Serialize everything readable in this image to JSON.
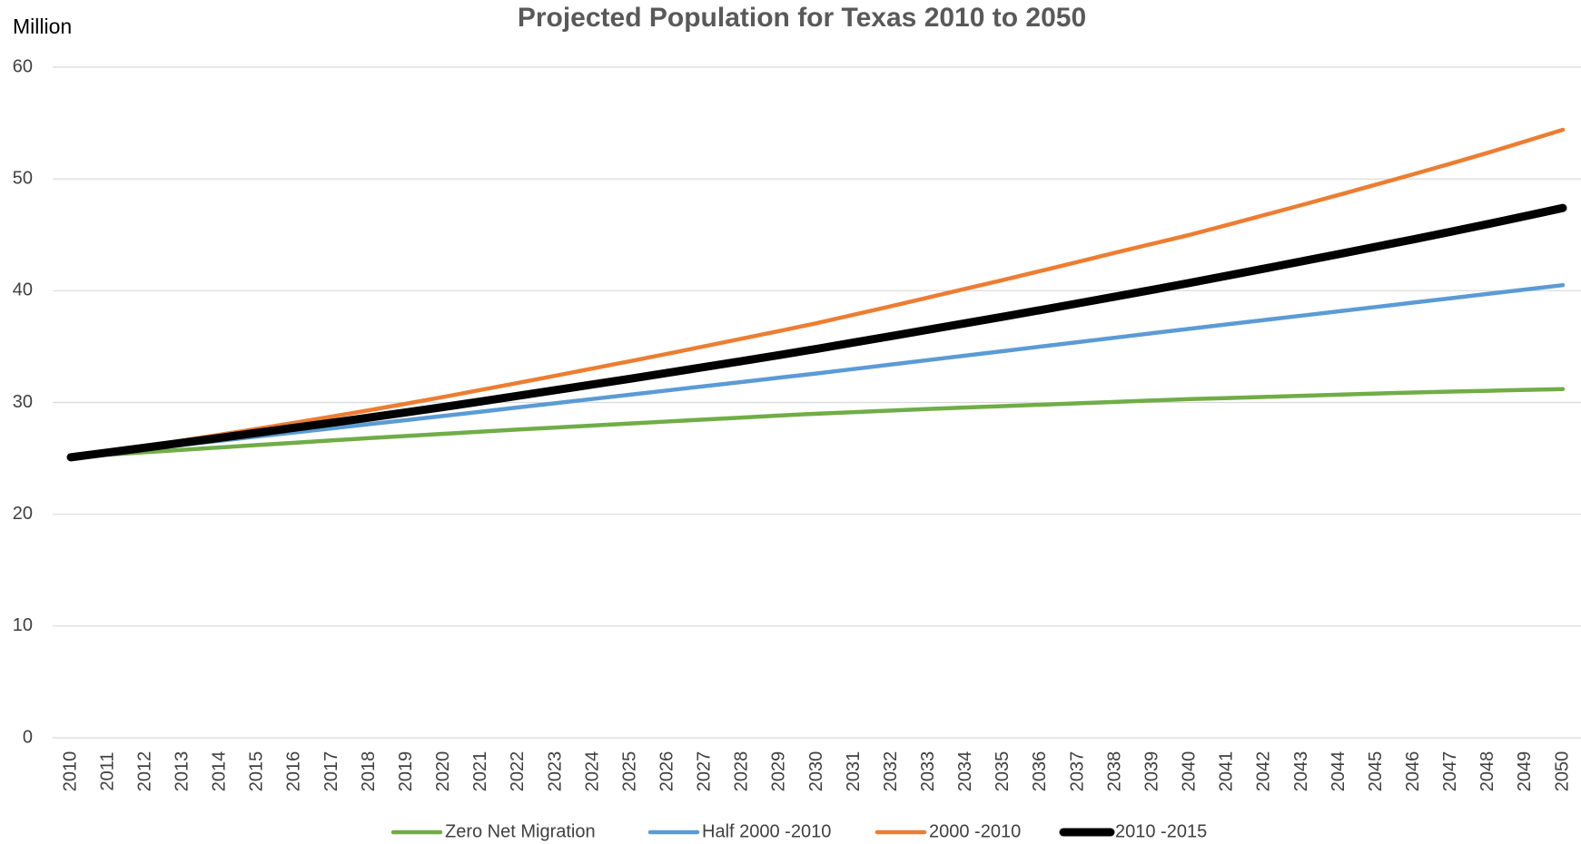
{
  "chart_data": {
    "type": "line",
    "title": "Projected Population for Texas 2010 to 2050",
    "y_label": "Million",
    "x": [
      2010,
      2011,
      2012,
      2013,
      2014,
      2015,
      2016,
      2017,
      2018,
      2019,
      2020,
      2021,
      2022,
      2023,
      2024,
      2025,
      2026,
      2027,
      2028,
      2029,
      2030,
      2031,
      2032,
      2033,
      2034,
      2035,
      2036,
      2037,
      2038,
      2039,
      2040,
      2041,
      2042,
      2043,
      2044,
      2045,
      2046,
      2047,
      2048,
      2049,
      2050
    ],
    "xlim": [
      2010,
      2050
    ],
    "ylim": [
      0,
      60
    ],
    "yticks": [
      0,
      10,
      20,
      30,
      40,
      50,
      60
    ],
    "grid": true,
    "legend": "bottom",
    "series": [
      {
        "name": "Zero Net Migration",
        "color": "#70ad47",
        "width": 4.5,
        "values": [
          25.1,
          25.33,
          25.55,
          25.77,
          25.98,
          26.19,
          26.4,
          26.61,
          26.81,
          27.01,
          27.2,
          27.39,
          27.58,
          27.76,
          27.94,
          28.12,
          28.3,
          28.48,
          28.65,
          28.83,
          29.0,
          29.14,
          29.28,
          29.42,
          29.55,
          29.68,
          29.8,
          29.93,
          30.05,
          30.18,
          30.3,
          30.4,
          30.5,
          30.6,
          30.7,
          30.8,
          30.89,
          30.97,
          31.05,
          31.13,
          31.2
        ]
      },
      {
        "name": "Half 2000 -2010",
        "color": "#5b9bd5",
        "width": 4.5,
        "values": [
          25.1,
          25.47,
          25.84,
          26.21,
          26.58,
          26.95,
          27.32,
          27.69,
          28.06,
          28.43,
          28.8,
          29.18,
          29.56,
          29.94,
          30.32,
          30.7,
          31.08,
          31.46,
          31.84,
          32.22,
          32.6,
          33.0,
          33.4,
          33.8,
          34.2,
          34.6,
          35.0,
          35.4,
          35.8,
          36.2,
          36.6,
          36.99,
          37.38,
          37.77,
          38.16,
          38.55,
          38.94,
          39.33,
          39.72,
          40.11,
          40.5
        ]
      },
      {
        "name": "2000 -2010",
        "color": "#ed7d31",
        "width": 4.5,
        "values": [
          25.1,
          25.59,
          26.09,
          26.6,
          27.12,
          27.65,
          28.19,
          28.74,
          29.31,
          29.9,
          30.5,
          31.13,
          31.76,
          32.4,
          33.05,
          33.7,
          34.36,
          35.04,
          35.72,
          36.4,
          37.1,
          37.86,
          38.62,
          39.4,
          40.18,
          40.97,
          41.77,
          42.58,
          43.4,
          44.2,
          45.0,
          45.88,
          46.77,
          47.67,
          48.58,
          49.5,
          50.43,
          51.38,
          52.35,
          53.37,
          54.4
        ]
      },
      {
        "name": "2010 -2015",
        "color": "#000000",
        "width": 9,
        "values": [
          25.1,
          25.53,
          25.96,
          26.4,
          26.84,
          27.29,
          27.74,
          28.19,
          28.65,
          29.12,
          29.6,
          30.1,
          30.6,
          31.11,
          31.62,
          32.13,
          32.65,
          33.18,
          33.71,
          34.25,
          34.8,
          35.37,
          35.94,
          36.52,
          37.1,
          37.68,
          38.27,
          38.87,
          39.47,
          40.08,
          40.7,
          41.34,
          41.98,
          42.63,
          43.28,
          43.94,
          44.6,
          45.28,
          45.97,
          46.68,
          47.4
        ]
      }
    ]
  }
}
